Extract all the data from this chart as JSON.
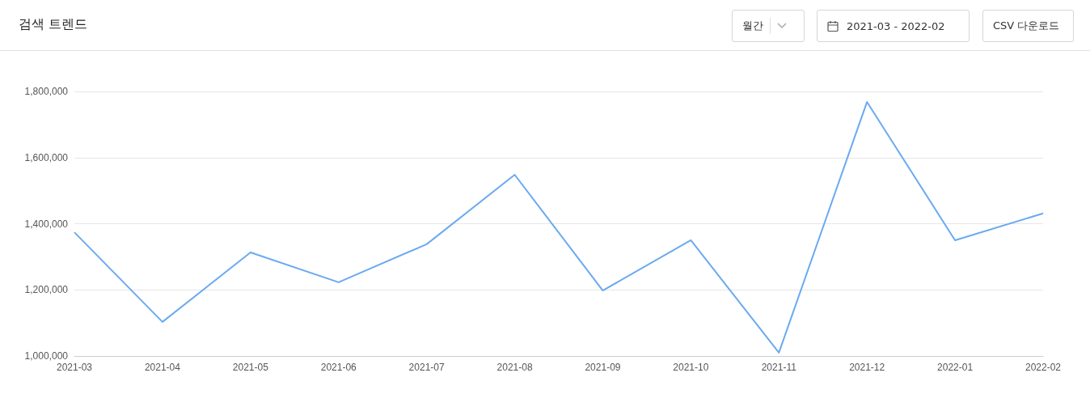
{
  "chart_data": {
    "type": "line",
    "title": "검색 트렌드",
    "annotations": [
      "월간",
      "2021-03 - 2022-02",
      "CSV 다운로드"
    ],
    "categories": [
      "2021-03",
      "2021-04",
      "2021-05",
      "2021-06",
      "2021-07",
      "2021-08",
      "2021-09",
      "2021-10",
      "2021-11",
      "2021-12",
      "2022-01",
      "2022-02"
    ],
    "series": [
      {
        "color": "#6aaaf0",
        "values": [
          1374000,
          1103000,
          1313000,
          1223000,
          1338000,
          1548000,
          1198000,
          1350000,
          1010000,
          1768000,
          1350000,
          1431000
        ]
      }
    ],
    "ylim": [
      1000000,
      1800000
    ],
    "yticks": [
      {
        "value": 1000000,
        "label": "1,000,000"
      },
      {
        "value": 1200000,
        "label": "1,200,000"
      },
      {
        "value": 1400000,
        "label": "1,400,000"
      },
      {
        "value": 1600000,
        "label": "1,600,000"
      },
      {
        "value": 1800000,
        "label": "1,800,000"
      }
    ],
    "grid": "y",
    "marker": "none",
    "line_style": "solid"
  }
}
